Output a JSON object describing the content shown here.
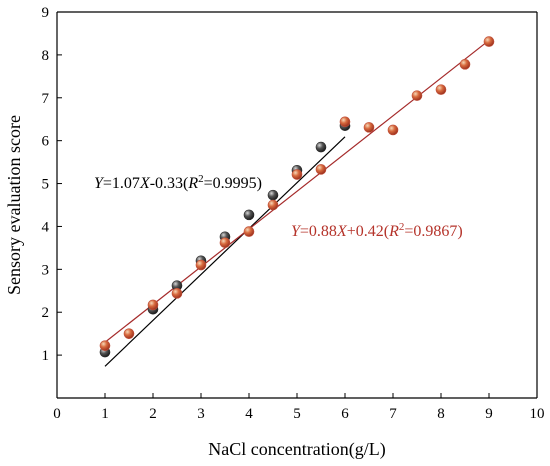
{
  "chart_data": {
    "type": "scatter",
    "xlabel": "NaCl concentration(g/L)",
    "ylabel": "Sensory evaluation score",
    "xlim": [
      0,
      10
    ],
    "ylim": [
      0,
      9
    ],
    "xticks": [
      0,
      1,
      2,
      3,
      4,
      5,
      6,
      7,
      8,
      9,
      10
    ],
    "yticks": [
      1,
      2,
      3,
      4,
      5,
      6,
      7,
      8,
      9
    ],
    "grid": false,
    "series": [
      {
        "color": "#2b2b2b",
        "line_color": "#000000",
        "x": [
          1.0,
          2.0,
          2.5,
          3.0,
          3.5,
          4.0,
          4.5,
          5.0,
          5.5,
          6.0
        ],
        "y": [
          1.07,
          2.07,
          2.62,
          3.2,
          3.76,
          4.27,
          4.73,
          5.31,
          5.85,
          6.35
        ],
        "fit": {
          "slope": 1.07,
          "intercept": -0.33,
          "x_range": [
            1,
            6
          ]
        },
        "equation": {
          "Y": "Y",
          "mid": "=1.07",
          "X": "X",
          "rest": "-0.33(",
          "R": "R",
          "sup": "2",
          "end": "=0.9995)"
        }
      },
      {
        "color": "#c0503b",
        "line_color": "#a52a2a",
        "x": [
          1.0,
          1.5,
          2.0,
          2.5,
          3.0,
          3.5,
          4.0,
          4.5,
          5.0,
          5.5,
          6.0,
          6.5,
          7.0,
          7.5,
          8.0,
          8.5,
          9.0
        ],
        "y": [
          1.22,
          1.5,
          2.17,
          2.44,
          3.1,
          3.62,
          3.88,
          4.5,
          5.21,
          5.33,
          6.44,
          6.31,
          6.25,
          7.05,
          7.19,
          7.78,
          8.31
        ],
        "fit": {
          "slope": 0.88,
          "intercept": 0.42,
          "x_range": [
            1,
            9
          ]
        },
        "equation": {
          "Y": "Y",
          "mid": "=0.88",
          "X": "X",
          "rest": "+0.42(",
          "R": "R",
          "sup": "2",
          "end": "=0.9867)"
        }
      }
    ]
  }
}
